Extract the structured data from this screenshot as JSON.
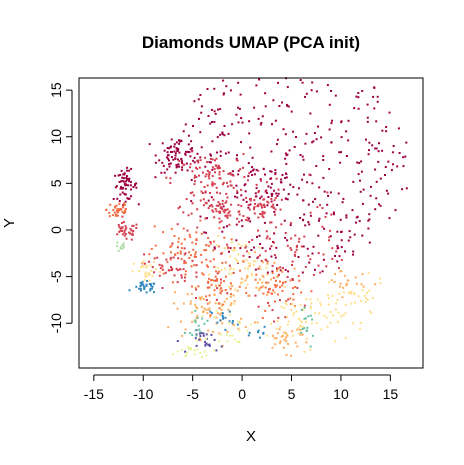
{
  "chart_data": {
    "type": "scatter",
    "title": "Diamonds UMAP (PCA init)",
    "xlabel": "X",
    "ylabel": "Y",
    "xlim": [
      -16.5,
      18.3
    ],
    "ylim": [
      -14.8,
      16.3
    ],
    "x_ticks": [
      -15,
      -10,
      -5,
      0,
      5,
      10,
      15
    ],
    "y_ticks": [
      -10,
      -5,
      0,
      5,
      10,
      15
    ],
    "grid": false,
    "legend": "none",
    "palette": [
      "#9e0142",
      "#d53e4f",
      "#f46d43",
      "#fdae61",
      "#fee08b",
      "#e6f598",
      "#abdda4",
      "#66c2a5",
      "#3288bd",
      "#5e4fa2"
    ],
    "clusters": [
      {
        "center": [
          -11.8,
          4.8
        ],
        "spread": [
          0.6,
          0.8
        ],
        "count": 60,
        "color": "#9e0142"
      },
      {
        "center": [
          -12.5,
          2.2
        ],
        "spread": [
          0.6,
          0.6
        ],
        "count": 35,
        "color": "#f46d43"
      },
      {
        "center": [
          -11.8,
          -0.2
        ],
        "spread": [
          0.7,
          0.5
        ],
        "count": 35,
        "color": "#d53e4f"
      },
      {
        "center": [
          -12.2,
          -1.8
        ],
        "spread": [
          0.3,
          0.3
        ],
        "count": 10,
        "color": "#abdda4"
      },
      {
        "center": [
          -9.8,
          -6.2
        ],
        "spread": [
          0.6,
          0.3
        ],
        "count": 30,
        "color": "#3288bd"
      },
      {
        "center": [
          -6.5,
          8.2
        ],
        "spread": [
          1.0,
          1.0
        ],
        "count": 70,
        "color": "#9e0142"
      },
      {
        "center": [
          -3.5,
          5.5
        ],
        "spread": [
          1.8,
          1.3
        ],
        "count": 90,
        "color": "#d53e4f"
      },
      {
        "center": [
          -2.0,
          2.0
        ],
        "spread": [
          1.0,
          0.8
        ],
        "count": 45,
        "color": "#d53e4f"
      },
      {
        "center": [
          1.8,
          2.5
        ],
        "spread": [
          1.0,
          0.9
        ],
        "count": 50,
        "color": "#d53e4f"
      },
      {
        "center": [
          3.0,
          5.0
        ],
        "spread": [
          1.5,
          1.2
        ],
        "count": 45,
        "color": "#9e0142"
      },
      {
        "center": [
          -5.5,
          -2.5
        ],
        "spread": [
          2.0,
          1.5
        ],
        "count": 80,
        "color": "#f46d43"
      },
      {
        "center": [
          -7.5,
          -4.0
        ],
        "spread": [
          1.2,
          1.0
        ],
        "count": 40,
        "color": "#d53e4f"
      },
      {
        "center": [
          -9.5,
          -4.5
        ],
        "spread": [
          0.7,
          0.6
        ],
        "count": 25,
        "color": "#fee08b"
      },
      {
        "center": [
          -3.0,
          -8.5
        ],
        "spread": [
          2.0,
          1.5
        ],
        "count": 80,
        "color": "#fdae61"
      },
      {
        "center": [
          -2.5,
          -6.0
        ],
        "spread": [
          1.5,
          1.0
        ],
        "count": 40,
        "color": "#f46d43"
      },
      {
        "center": [
          0.0,
          -4.0
        ],
        "spread": [
          1.5,
          1.5
        ],
        "count": 50,
        "color": "#fee08b"
      },
      {
        "center": [
          -3.5,
          -12.0
        ],
        "spread": [
          0.8,
          0.6
        ],
        "count": 25,
        "color": "#5e4fa2"
      },
      {
        "center": [
          -2.0,
          -9.5
        ],
        "spread": [
          0.6,
          0.6
        ],
        "count": 15,
        "color": "#3288bd"
      },
      {
        "center": [
          -4.5,
          -10.0
        ],
        "spread": [
          0.6,
          0.6
        ],
        "count": 15,
        "color": "#66c2a5"
      },
      {
        "center": [
          4.0,
          -6.5
        ],
        "spread": [
          1.5,
          1.0
        ],
        "count": 45,
        "color": "#f46d43"
      },
      {
        "center": [
          6.5,
          -9.5
        ],
        "spread": [
          2.0,
          1.5
        ],
        "count": 70,
        "color": "#fee08b"
      },
      {
        "center": [
          4.5,
          -11.5
        ],
        "spread": [
          1.2,
          0.8
        ],
        "count": 30,
        "color": "#fdae61"
      },
      {
        "center": [
          6.5,
          -10.5
        ],
        "spread": [
          0.4,
          0.8
        ],
        "count": 15,
        "color": "#66c2a5"
      },
      {
        "center": [
          2.0,
          -11.0
        ],
        "spread": [
          0.5,
          0.5
        ],
        "count": 8,
        "color": "#3288bd"
      },
      {
        "center": [
          11.5,
          -7.5
        ],
        "spread": [
          1.5,
          1.0
        ],
        "count": 30,
        "color": "#fee08b"
      },
      {
        "center": [
          10.5,
          -5.5
        ],
        "spread": [
          1.0,
          0.8
        ],
        "count": 20,
        "color": "#fdae61"
      },
      {
        "center": [
          -5.0,
          -13.2
        ],
        "spread": [
          1.5,
          0.5
        ],
        "count": 20,
        "color": "#e6f598"
      },
      {
        "center": [
          5.0,
          -2.0
        ],
        "spread": [
          2.0,
          1.5
        ],
        "count": 35,
        "color": "#d53e4f"
      },
      {
        "center": [
          2.0,
          -5.0
        ],
        "spread": [
          1.5,
          1.0
        ],
        "count": 30,
        "color": "#fdae61"
      },
      {
        "center": [
          -1.0,
          -10.5
        ],
        "spread": [
          1.0,
          1.0
        ],
        "count": 20,
        "color": "#e6f598"
      }
    ],
    "sparse_region": {
      "center": [
        5.0,
        7.0
      ],
      "radius": 12.0,
      "count": 420,
      "color": "#9e0142"
    },
    "sparse_region_secondary": {
      "center": [
        1.5,
        -1.0
      ],
      "radius": 9.0,
      "count": 120,
      "color": "#d53e4f"
    }
  }
}
